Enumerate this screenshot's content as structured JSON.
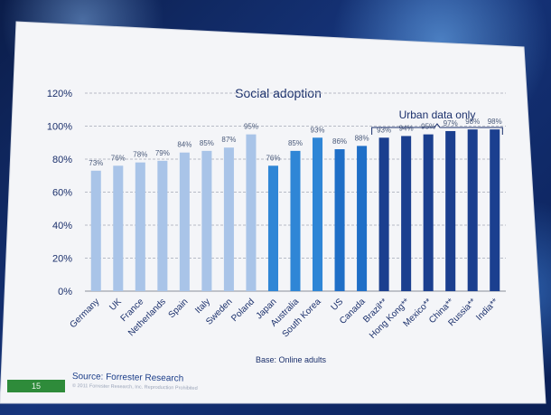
{
  "slide": {
    "page_number": "15",
    "source": "Source: Forrester Research",
    "copyright": "© 2011 Forrester Research, Inc. Reproduction Prohibited"
  },
  "chart_data": {
    "type": "bar",
    "title": "Social adoption",
    "annotation": "Urban data only",
    "base_note": "Base: Online adults",
    "ylim": [
      0,
      120
    ],
    "yticks": [
      "0%",
      "20%",
      "40%",
      "60%",
      "80%",
      "100%",
      "120%"
    ],
    "categories": [
      "Germany",
      "UK",
      "France",
      "Netherlands",
      "Spain",
      "Italy",
      "Sweden",
      "Poland",
      "Japan",
      "Australia",
      "South Korea",
      "US",
      "Canada",
      "Brazil**",
      "Hong Kong**",
      "Mexico**",
      "China**",
      "Russia**",
      "India**"
    ],
    "values": [
      73,
      76,
      78,
      79,
      84,
      85,
      87,
      95,
      76,
      85,
      93,
      86,
      88,
      93,
      94,
      95,
      97,
      98,
      98
    ],
    "value_labels": [
      "73%",
      "76%",
      "78%",
      "79%",
      "84%",
      "85%",
      "87%",
      "95%",
      "76%",
      "85%",
      "93%",
      "86%",
      "88%",
      "93%",
      "94%",
      "95%",
      "97%",
      "98%",
      "98%"
    ],
    "grid": "dashed-horizontal",
    "colors": {
      "europe": "#a9c4e8",
      "apac": "#2f86d6",
      "americas": "#1f6fc7",
      "urban": "#1b3f8f"
    },
    "bar_groups": [
      "europe",
      "europe",
      "europe",
      "europe",
      "europe",
      "europe",
      "europe",
      "europe",
      "apac",
      "apac",
      "apac",
      "americas",
      "americas",
      "urban",
      "urban",
      "urban",
      "urban",
      "urban",
      "urban"
    ]
  }
}
